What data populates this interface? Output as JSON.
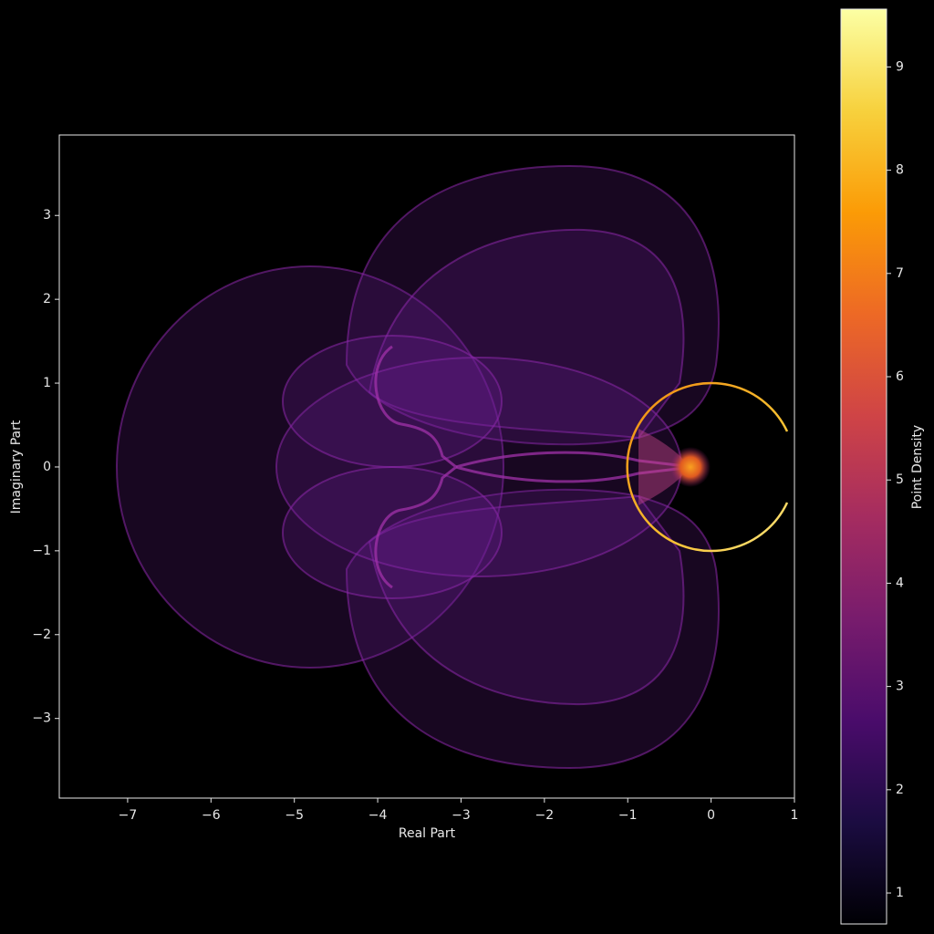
{
  "chart_data": {
    "type": "density",
    "xlabel": "Real Part",
    "ylabel": "Imaginary Part",
    "xlim": [
      -7.82,
      1.0
    ],
    "xticks": [
      {
        "value": -7,
        "label": "−7"
      },
      {
        "value": -6,
        "label": "−6"
      },
      {
        "value": -5,
        "label": "−5"
      },
      {
        "value": -4,
        "label": "−4"
      },
      {
        "value": -3,
        "label": "−3"
      },
      {
        "value": -2,
        "label": "−2"
      },
      {
        "value": -1,
        "label": "−1"
      },
      0,
      1
    ],
    "ylim": [
      -3.95,
      3.96
    ],
    "yticks": [
      {
        "value": -3,
        "label": "−3"
      },
      {
        "value": -2,
        "label": "−2"
      },
      {
        "value": -1,
        "label": "−1"
      },
      0,
      1,
      2,
      3
    ],
    "colormap": "inferno",
    "colorbar": {
      "label": "Point Density",
      "lim": [
        0.7,
        9.56
      ],
      "ticks": [
        1,
        2,
        3,
        4,
        5,
        6,
        7,
        8,
        9
      ]
    }
  }
}
